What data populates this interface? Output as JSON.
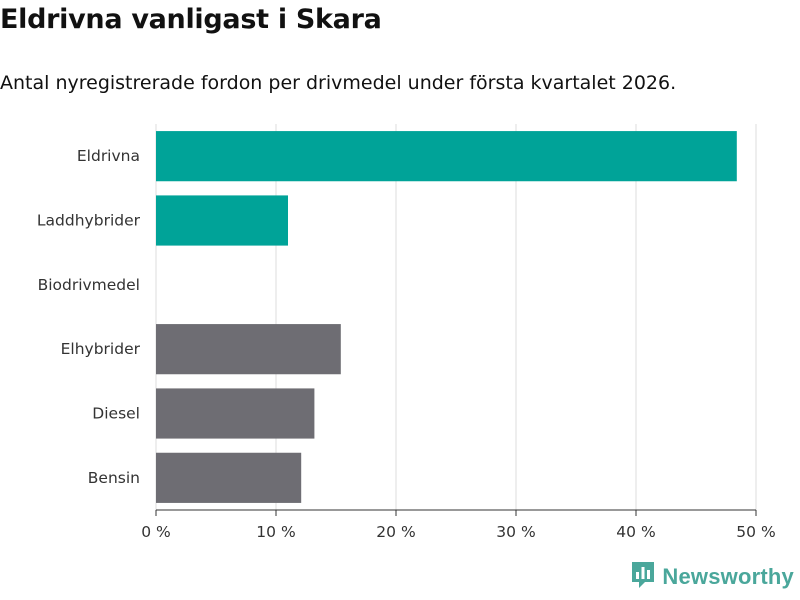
{
  "chart_data": {
    "type": "bar",
    "orientation": "horizontal",
    "title": "Eldrivna vanligast i Skara",
    "subtitle": "Antal nyregistrerade fordon per drivmedel under första kvartalet 2026.",
    "categories": [
      "Eldrivna",
      "Laddhybrider",
      "Biodrivmedel",
      "Elhybrider",
      "Diesel",
      "Bensin"
    ],
    "values": [
      48.4,
      11.0,
      0,
      15.4,
      13.2,
      12.1
    ],
    "colors": [
      "#00a398",
      "#00a398",
      "#00a398",
      "#6e6d73",
      "#6e6d73",
      "#6e6d73"
    ],
    "xlim": [
      0,
      50
    ],
    "xticks": [
      0,
      10,
      20,
      30,
      40,
      50
    ],
    "xtick_labels": [
      "0 %",
      "10 %",
      "20 %",
      "30 %",
      "40 %",
      "50 %"
    ],
    "xlabel": "",
    "ylabel": "",
    "grid": true
  },
  "branding": {
    "logo_text": "Newsworthy",
    "logo_icon": "bar-chart-badge-icon",
    "logo_color": "#4aa79b"
  }
}
